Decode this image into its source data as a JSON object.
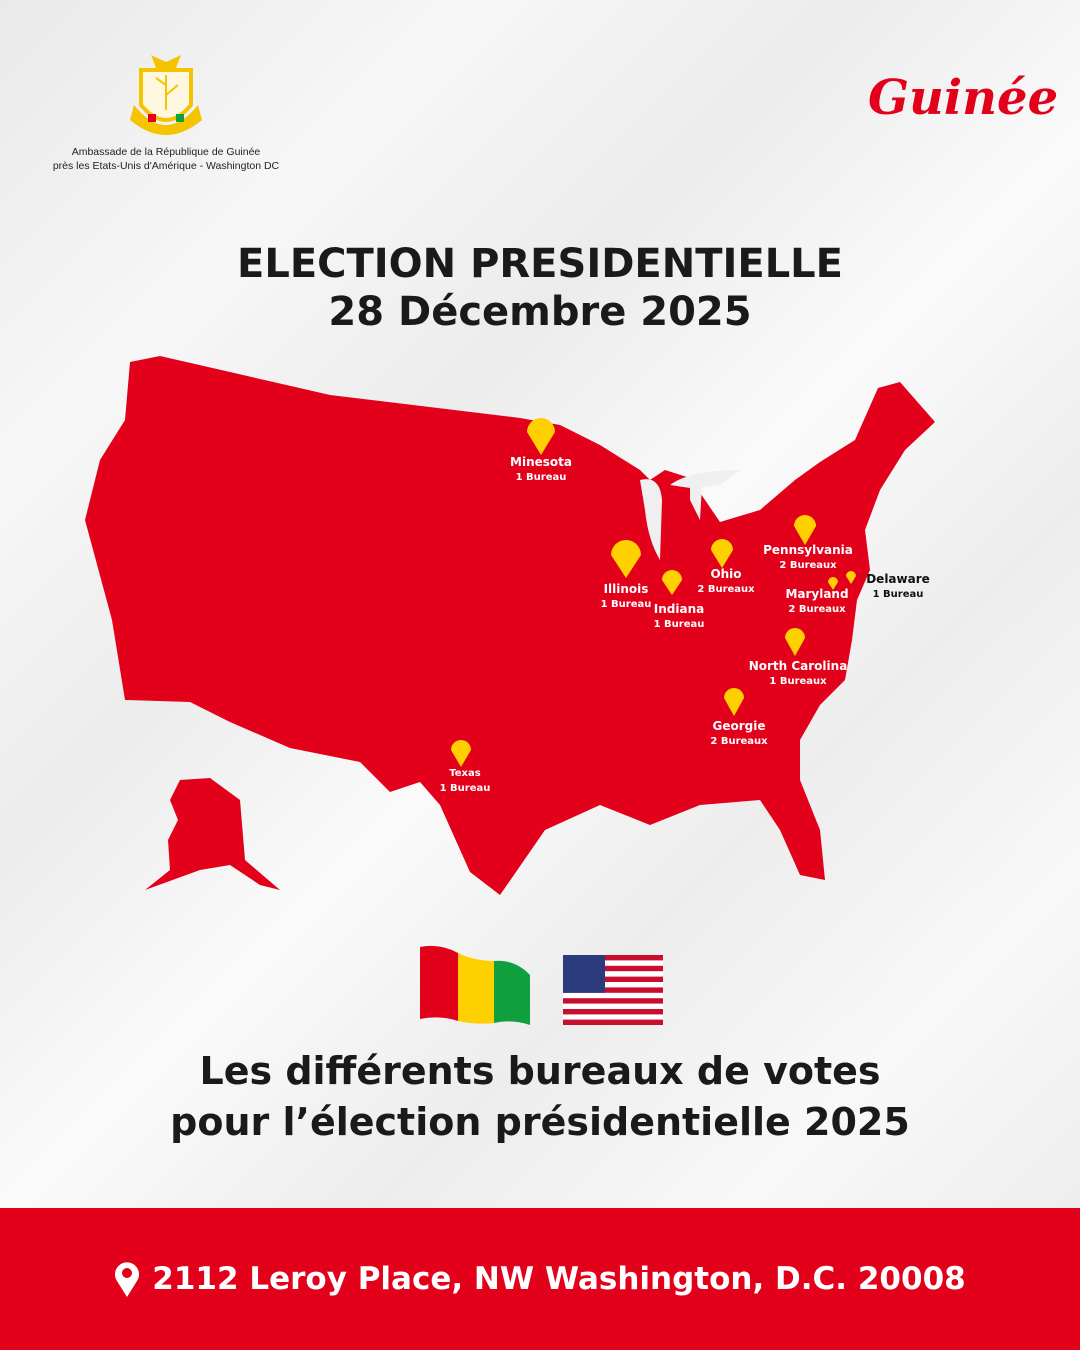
{
  "header": {
    "embassy_line1": "Ambassade de la République de Guinée",
    "embassy_line2": "près les Etats-Unis d'Amérique - Washington DC",
    "brand": "Guinée"
  },
  "title": {
    "line1": "ELECTION PRESIDENTIELLE",
    "line2": "28 Décembre 2025"
  },
  "map": {
    "fill_color": "#e2001a",
    "pin_color": "#ffd000",
    "locations": [
      {
        "state": "Minesota",
        "count": "1 Bureau"
      },
      {
        "state": "Illinois",
        "count": "1 Bureau"
      },
      {
        "state": "Indiana",
        "count": "1 Bureau"
      },
      {
        "state": "Ohio",
        "count": "2 Bureaux"
      },
      {
        "state": "Pennsylvania",
        "count": "2 Bureaux"
      },
      {
        "state": "Maryland",
        "count": "2 Bureaux"
      },
      {
        "state": "Delaware",
        "count": "1 Bureau"
      },
      {
        "state": "North Carolina",
        "count": "1 Bureaux"
      },
      {
        "state": "Georgie",
        "count": "2 Bureaux"
      },
      {
        "state": "Texas",
        "count": "1 Bureau"
      }
    ]
  },
  "subtitle": {
    "line1": "Les différents bureaux de votes",
    "line2": "pour l’élection présidentielle 2025"
  },
  "footer": {
    "icon": "location-pin-icon",
    "address": "2112 Leroy Place, NW Washington, D.C. 20008"
  }
}
